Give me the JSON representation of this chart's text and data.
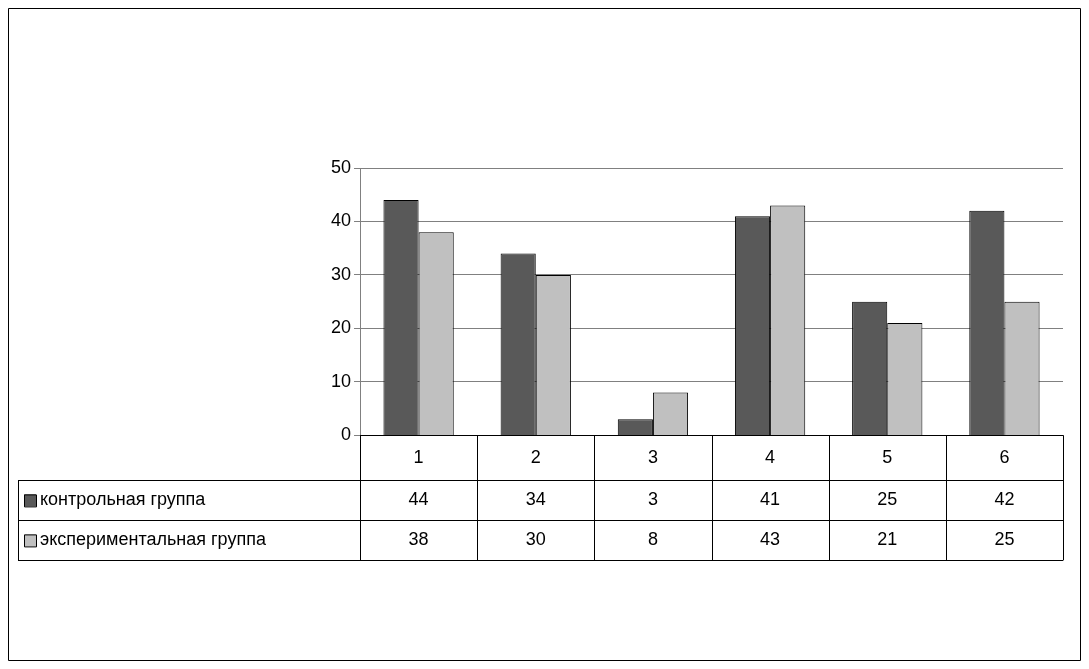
{
  "chart_data": {
    "type": "bar",
    "categories": [
      "1",
      "2",
      "3",
      "4",
      "5",
      "6"
    ],
    "series": [
      {
        "name": "контрольная группа",
        "color": "#595959",
        "values": [
          44,
          34,
          3,
          41,
          25,
          42
        ]
      },
      {
        "name": "экспериментальная группа",
        "color": "#c0c0c0",
        "values": [
          38,
          30,
          8,
          43,
          21,
          25
        ]
      }
    ],
    "ylim": [
      0,
      50
    ],
    "yticks": [
      0,
      10,
      20,
      30,
      40,
      50
    ],
    "grid": "y",
    "legend": "bottom",
    "data_labels": true
  }
}
